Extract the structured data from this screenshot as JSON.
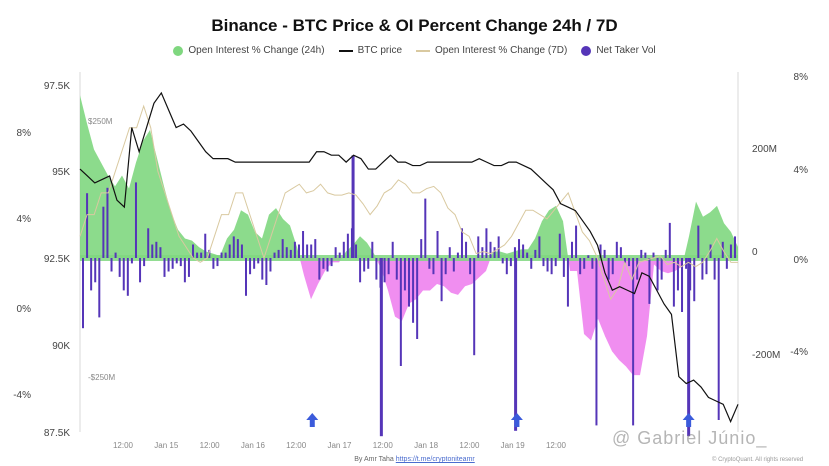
{
  "title": "Binance - BTC Price & OI Percent Change 24h / 7D",
  "credit": {
    "prefix": "By Amr Taha",
    "link": "https://t.me/cryptoniteamr"
  },
  "watermark": "@ Gabriel Júnio_",
  "copyright": "© CryptoQuant. All rights reserved",
  "colors": {
    "oi24h": "#7fd77f",
    "oi24h_neg": "#ee82ee",
    "btc": "#111111",
    "oi7d": "#d9c9a0",
    "taker": "#5535b8",
    "arrow": "#3b5bdb"
  },
  "chart_data": {
    "type": "bar",
    "title": "Binance - BTC Price & OI Percent Change 24h / 7D",
    "legend": [
      {
        "name": "Open Interest % Change (24h)",
        "marker": "dot"
      },
      {
        "name": "BTC price",
        "marker": "line"
      },
      {
        "name": "Open Interest % Change (7D)",
        "marker": "line"
      },
      {
        "name": "Net Taker Vol",
        "marker": "dot"
      }
    ],
    "legend_position": "top-center",
    "x_ticks": [
      "12:00",
      "Jan 15",
      "12:00",
      "Jan 16",
      "12:00",
      "Jan 17",
      "12:00",
      "Jan 18",
      "12:00",
      "Jan 19",
      "12:00"
    ],
    "axes": {
      "price": {
        "side": "left-outer",
        "ticks": [
          "97.5K",
          "95K",
          "92.5K",
          "90K",
          "87.5K"
        ],
        "range": [
          87500,
          97500
        ]
      },
      "oi7d": {
        "side": "left-inner",
        "ticks": [
          "8%",
          "4%",
          "0%",
          "-4%"
        ],
        "range": [
          -6,
          10
        ]
      },
      "taker": {
        "side": "right-inner",
        "ticks": [
          "200M",
          "0",
          "-200M"
        ],
        "range": [
          -350,
          350
        ]
      },
      "oi24h": {
        "side": "right-outer",
        "ticks": [
          "8%",
          "4%",
          "0%",
          "-4%"
        ],
        "range": [
          -6,
          8
        ]
      },
      "inner_labels": [
        "$250M",
        "-$250M"
      ]
    },
    "oi24h_pct": [
      7.5,
      6.2,
      5.0,
      4.4,
      3.8,
      3.3,
      3.8,
      3.2,
      4.4,
      5.4,
      5.9,
      4.6,
      3.3,
      2.1,
      1.3,
      0.9,
      0.8,
      0.5,
      0.3,
      0.2,
      0.1,
      0.9,
      1.3,
      2.2,
      2.0,
      1.2,
      0.9,
      2.0,
      2.3,
      1.8,
      1.5,
      0.5,
      -0.8,
      -1.9,
      -1.2,
      -0.6,
      -0.2,
      -0.2,
      0.3,
      0.6,
      1.0,
      0.7,
      0.2,
      -0.5,
      -1.5,
      -2.7,
      -2.9,
      -2.1,
      -1.9,
      -1.5,
      -1.5,
      -1.2,
      -1.3,
      -1.6,
      -1.7,
      -1.3,
      -1.2,
      -0.9,
      -0.6,
      0.3,
      0.3,
      0.2,
      0.3,
      0.4,
      0.4,
      0.9,
      1.7,
      2.2,
      2.4,
      1.7,
      -0.6,
      -0.6,
      -3.5,
      -3.8,
      -2.8,
      -3.6,
      -4.3,
      -4.7,
      -5.0,
      -5.4,
      -5.4,
      -3.6,
      -0.3,
      -0.6,
      -0.7,
      -0.6,
      -0.4,
      1.0,
      2.6,
      1.9,
      2.1,
      2.4,
      1.6,
      1.2,
      0.5
    ],
    "oi7d_pct": [
      1,
      2,
      2,
      3,
      3,
      4,
      5,
      6,
      6,
      7,
      6,
      4,
      3,
      2,
      1,
      0.5,
      0,
      -0.2,
      0,
      1,
      2,
      2,
      3,
      3,
      2,
      1,
      0,
      1,
      2,
      3,
      3.2,
      3.4,
      3,
      3.1,
      3.4,
      3,
      2.9,
      2.9,
      3,
      2.9,
      2.5,
      2,
      2.4,
      3,
      3.2,
      3.6,
      3.4,
      3,
      3,
      3.2,
      3.3,
      3,
      2.3,
      2,
      1.2,
      1,
      0.2,
      0.3,
      0.2,
      0.4,
      0.6,
      1,
      1.6,
      2.2,
      2.2,
      2,
      1.8,
      2.2,
      2.6,
      3,
      2.1,
      1.2,
      0.8,
      0.1,
      -0.9,
      -1.9,
      -1.4,
      -0.2,
      -1,
      -0.2,
      -0.1,
      0,
      0.1,
      -0.3,
      -0.2,
      -0.4,
      -0.2,
      -0.4,
      -0.2,
      0.3,
      0.9,
      0.3,
      -0.2,
      -0.2
    ],
    "btc_price": [
      95100,
      94900,
      94700,
      94800,
      94900,
      94200,
      94000,
      96300,
      95600,
      96300,
      97000,
      97300,
      96800,
      96300,
      96400,
      96200,
      95900,
      95600,
      95400,
      95400,
      95400,
      95300,
      95300,
      95300,
      95300,
      95300,
      95300,
      95300,
      95300,
      95300,
      95300,
      95300,
      95600,
      95600,
      95500,
      95500,
      95300,
      95500,
      95400,
      95100,
      95100,
      95300,
      95500,
      95300,
      95300,
      95200,
      95200,
      95300,
      95300,
      95300,
      95300,
      95300,
      95300,
      95300,
      95400,
      95300,
      95200,
      95200,
      95300,
      95300,
      95200,
      95100,
      94900,
      94700,
      94500,
      94100,
      94000,
      93900,
      93600,
      93300,
      92900,
      92100,
      91600,
      91700,
      91600,
      91500,
      92100,
      92000,
      91600,
      91200,
      90900,
      89100,
      88900,
      89000,
      88800,
      88500,
      88400,
      88300,
      87800,
      88300
    ],
    "net_taker_vol_m": [
      -130,
      120,
      -60,
      -45,
      -110,
      95,
      130,
      -25,
      10,
      -35,
      -60,
      -70,
      -10,
      140,
      -45,
      -15,
      55,
      25,
      30,
      20,
      -35,
      -25,
      -20,
      -10,
      -15,
      -45,
      -35,
      25,
      10,
      10,
      45,
      15,
      -20,
      -15,
      10,
      10,
      25,
      40,
      35,
      25,
      -70,
      -30,
      -20,
      -10,
      -40,
      -50,
      -25,
      10,
      15,
      35,
      20,
      15,
      30,
      25,
      50,
      25,
      25,
      35,
      -40,
      -20,
      -25,
      -15,
      20,
      10,
      30,
      45,
      55,
      25,
      -45,
      -25,
      -20,
      30,
      -40,
      -55,
      -45,
      -30,
      30,
      -40,
      -200,
      -60,
      -90,
      -120,
      -150,
      35,
      110,
      -20,
      -30,
      50,
      -80,
      -30,
      20,
      -25,
      10,
      55,
      30,
      -30,
      -180,
      40,
      20,
      55,
      30,
      20,
      40,
      -10,
      -30,
      -15,
      20,
      35,
      25,
      10,
      -20,
      15,
      40,
      -15,
      -25,
      -30,
      -15,
      45,
      -35,
      -90,
      30,
      60,
      -30,
      -20,
      5,
      -20,
      -310,
      25,
      15,
      -40,
      -30,
      30,
      20,
      -10,
      -15,
      -310,
      -40,
      15,
      10,
      -85,
      10,
      -60,
      -40,
      15,
      65,
      -90,
      -60,
      -100,
      -20,
      -60,
      -80,
      60,
      -40,
      -30,
      25,
      -40,
      -300,
      30,
      -20,
      25,
      40
    ],
    "taker_spikes_m": [
      {
        "pos": 0.415,
        "value": 190
      },
      {
        "pos": 0.458,
        "value": -330
      },
      {
        "pos": 0.662,
        "value": -320
      },
      {
        "pos": 0.925,
        "value": -330
      }
    ],
    "arrows_at": [
      0.353,
      0.664,
      0.925
    ]
  }
}
